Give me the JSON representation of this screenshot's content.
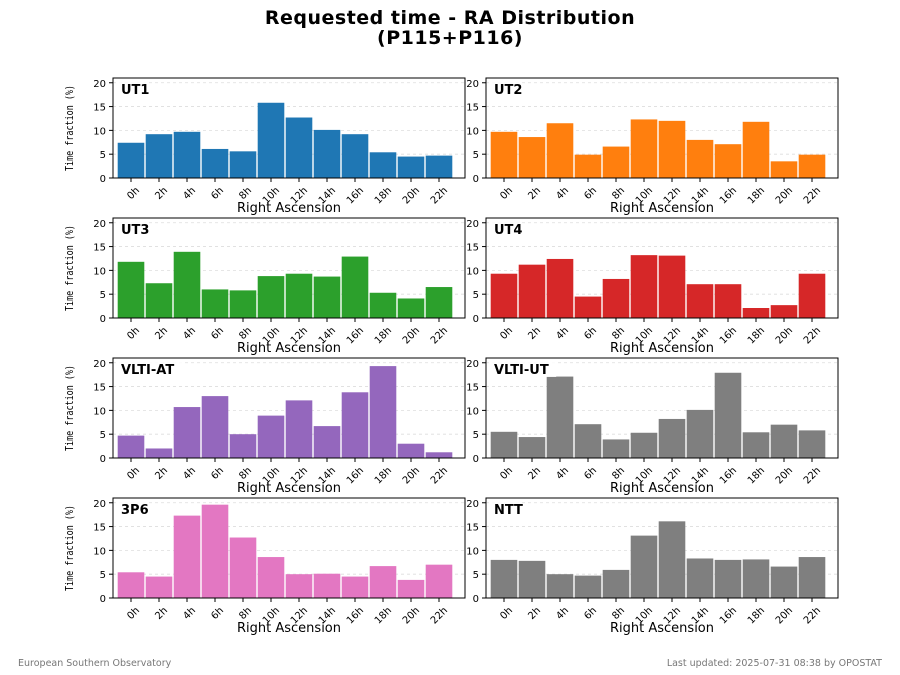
{
  "title_line1": "Requested time - RA Distribution",
  "title_line2": "(P115+P116)",
  "footer_left": "European Southern Observatory",
  "footer_right": "Last updated: 2025-07-31 08:38 by OPOSTAT",
  "chart_data": {
    "type": "bar",
    "xlabel": "Right Ascension",
    "ylabel": "Time fraction (%)",
    "ylim": [
      0,
      21
    ],
    "yticks": [
      0,
      5,
      10,
      15,
      20
    ],
    "categories": [
      "0h",
      "2h",
      "4h",
      "6h",
      "8h",
      "10h",
      "12h",
      "14h",
      "16h",
      "18h",
      "20h",
      "22h"
    ],
    "grid": "horizontal dashed",
    "panels": [
      {
        "name": "UT1",
        "color": "#1f77b4",
        "values": [
          7.4,
          9.2,
          9.7,
          6.1,
          5.6,
          15.8,
          12.7,
          10.1,
          9.2,
          5.4,
          4.5,
          4.7
        ]
      },
      {
        "name": "UT2",
        "color": "#ff7f0e",
        "values": [
          9.7,
          8.6,
          11.5,
          4.9,
          6.6,
          12.3,
          12.0,
          8.0,
          7.1,
          11.8,
          3.5,
          4.9
        ]
      },
      {
        "name": "UT3",
        "color": "#2ca02c",
        "values": [
          11.8,
          7.3,
          13.9,
          6.0,
          5.8,
          8.8,
          9.3,
          8.7,
          12.9,
          5.3,
          4.1,
          6.5
        ]
      },
      {
        "name": "UT4",
        "color": "#d62728",
        "values": [
          9.3,
          11.2,
          12.4,
          4.5,
          8.2,
          13.2,
          13.1,
          7.1,
          7.1,
          2.1,
          2.7,
          9.3
        ]
      },
      {
        "name": "VLTI-AT",
        "color": "#9467bd",
        "values": [
          4.7,
          2.0,
          10.7,
          13.0,
          5.0,
          8.9,
          12.1,
          6.7,
          13.8,
          19.3,
          3.0,
          1.2
        ]
      },
      {
        "name": "VLTI-UT",
        "color": "#7f7f7f",
        "values": [
          5.5,
          4.4,
          17.1,
          7.1,
          3.9,
          5.3,
          8.2,
          10.1,
          17.9,
          5.4,
          7.0,
          5.8
        ]
      },
      {
        "name": "3P6",
        "color": "#e377c2",
        "values": [
          5.4,
          4.5,
          17.3,
          19.6,
          12.7,
          8.6,
          5.0,
          5.1,
          4.5,
          6.7,
          3.8,
          7.0
        ]
      },
      {
        "name": "NTT",
        "color": "#7f7f7f",
        "values": [
          8.0,
          7.8,
          5.0,
          4.7,
          5.9,
          13.1,
          16.1,
          8.3,
          8.0,
          8.1,
          6.6,
          8.6
        ]
      }
    ]
  }
}
